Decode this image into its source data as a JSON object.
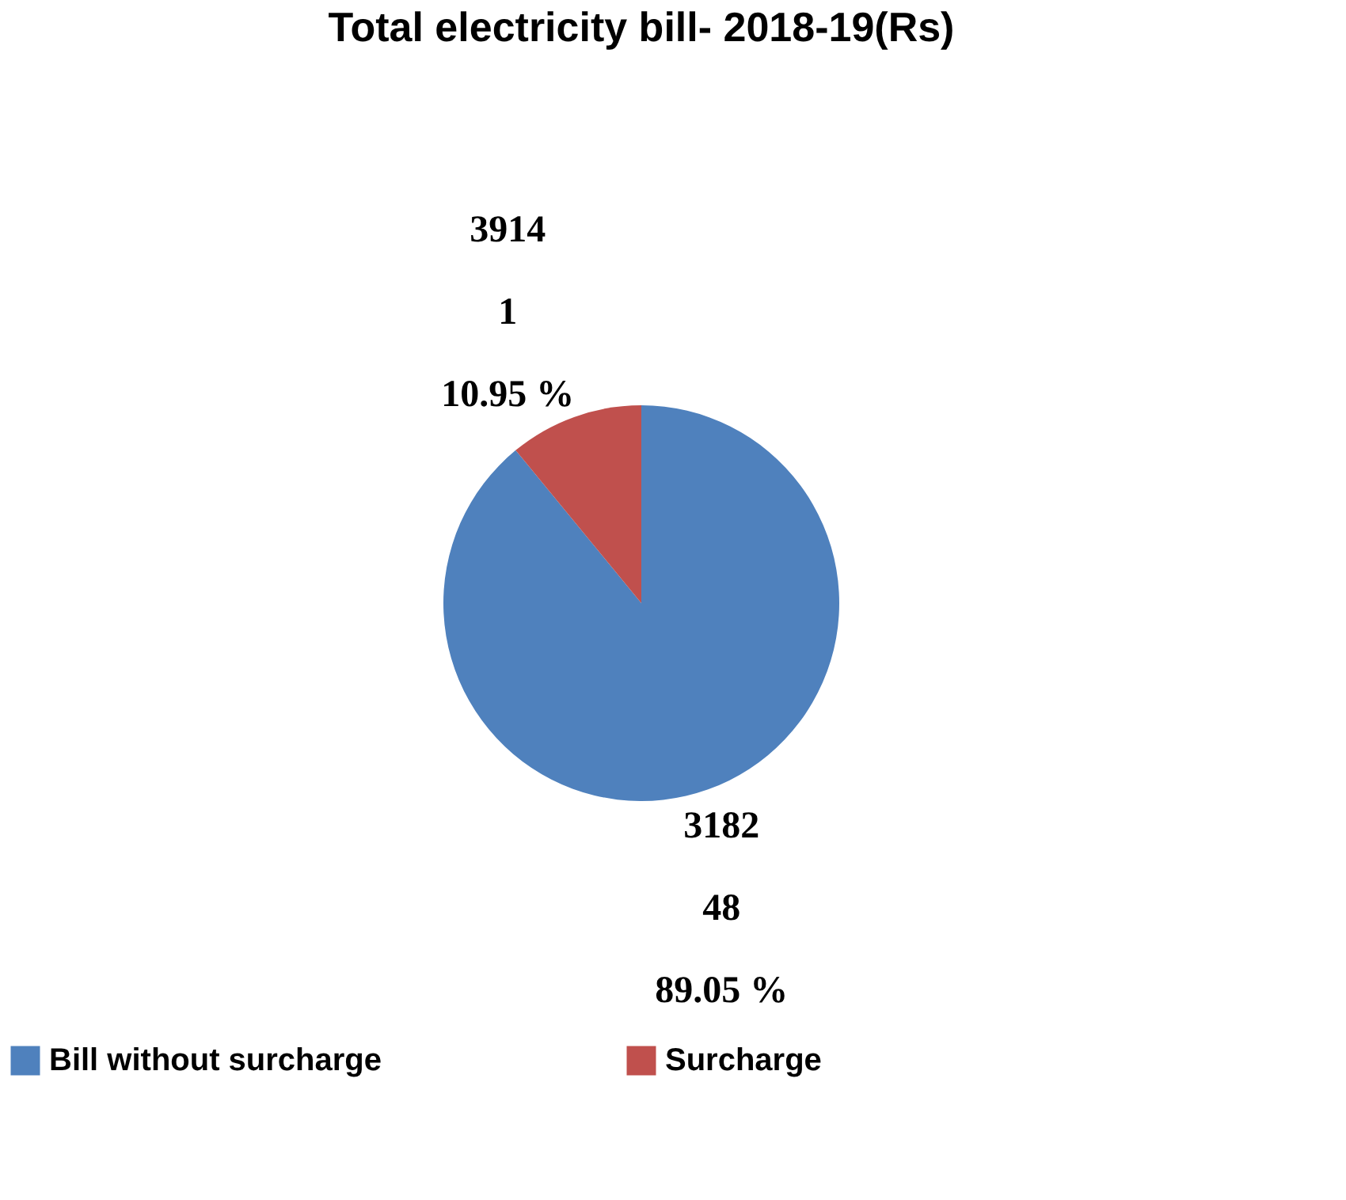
{
  "chart_data": {
    "type": "pie",
    "title": "Total electricity bill- 2018-19(Rs)",
    "categories": [
      "Bill without surcharge",
      "Surcharge"
    ],
    "values": [
      89.05,
      10.95
    ],
    "colors": [
      "#4f81bd",
      "#c0504d"
    ],
    "value_labels": [
      "3182\n48\n89.05 %",
      "3914\n1\n10.95 %"
    ],
    "legend": "bottom"
  }
}
